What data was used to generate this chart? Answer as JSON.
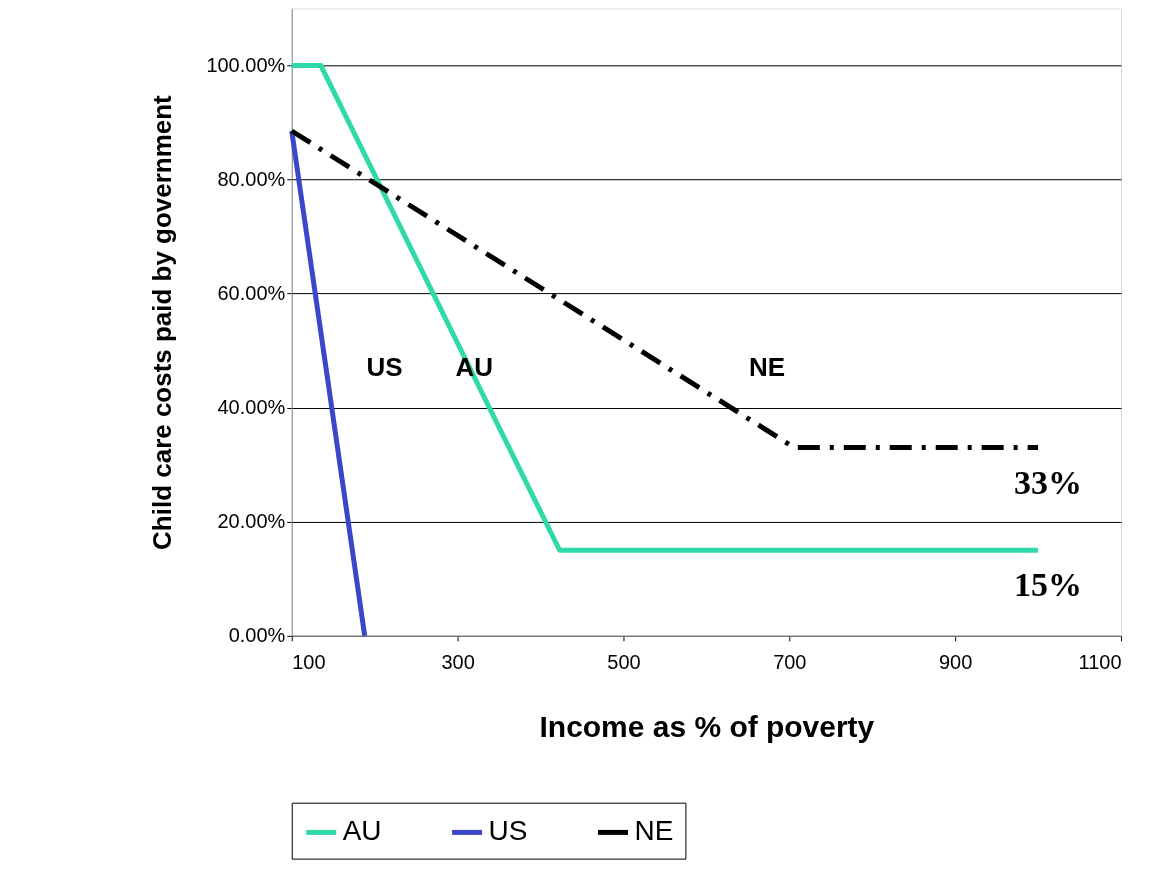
{
  "chart_data": {
    "type": "line",
    "xlabel": "Income as % of poverty",
    "ylabel": "Child care costs paid by government",
    "xlim": [
      100,
      1100
    ],
    "xticks": [
      100,
      300,
      500,
      700,
      900,
      {
        "value": 1100,
        "label": "1100"
      }
    ],
    "ylim": [
      0,
      110
    ],
    "yticks": [
      {
        "value": 0,
        "label": "0.00%"
      },
      {
        "value": 20,
        "label": "20.00%"
      },
      {
        "value": 40,
        "label": "40.00%"
      },
      {
        "value": 60,
        "label": "60.00%"
      },
      {
        "value": 80,
        "label": "80.00%"
      },
      {
        "value": 100,
        "label": "100.00%"
      }
    ],
    "grid": "y",
    "legend": "bottom",
    "marker": "none",
    "series": [
      {
        "name": "AU",
        "color": "#2fd9a8",
        "line_style": "solid",
        "x": [
          100,
          135,
          423,
          1000
        ],
        "values": [
          100,
          100,
          15,
          15
        ]
      },
      {
        "name": "US",
        "color": "#3c46c8",
        "line_style": "solid",
        "x": [
          100,
          188
        ],
        "values": [
          88.5,
          0
        ]
      },
      {
        "name": "NE",
        "color": "#000000",
        "line_style": "dashed",
        "x": [
          100,
          706,
          1000
        ],
        "values": [
          88.5,
          33,
          33
        ]
      }
    ],
    "annotations": [
      "US",
      "AU",
      "NE",
      {
        "text": "33%",
        "x": 1000,
        "y": 33
      },
      {
        "text": "15%",
        "x": 1000,
        "y": 15
      }
    ]
  }
}
